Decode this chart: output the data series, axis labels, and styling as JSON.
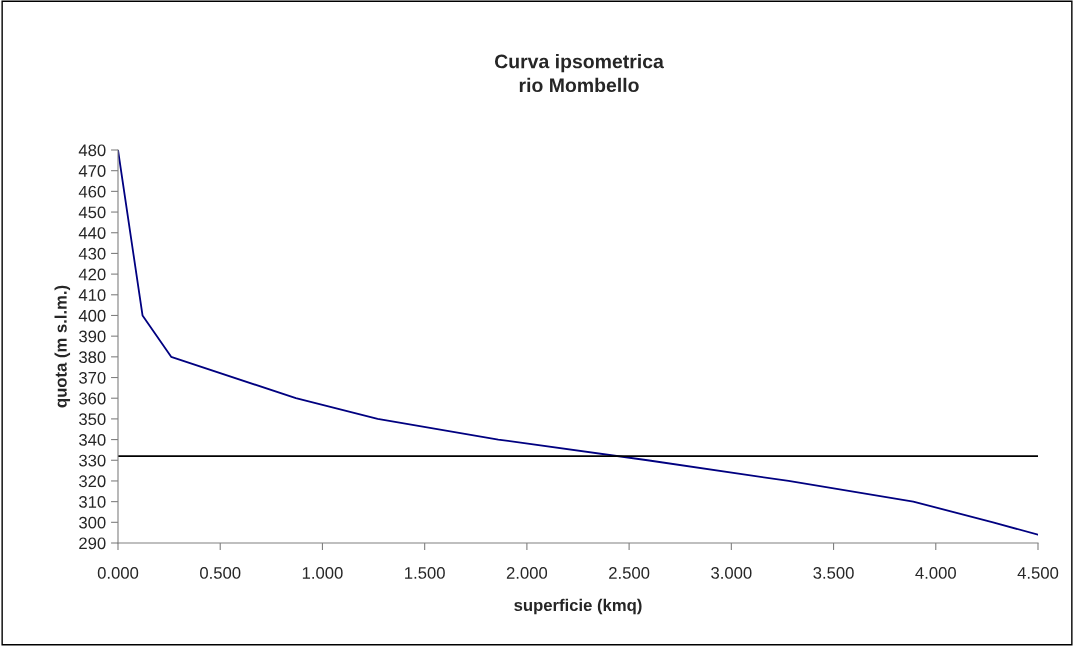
{
  "chart_data": {
    "type": "line",
    "title": "Curva ipsometrica\nrio Mombello",
    "xlabel": "superficie (kmq)",
    "ylabel": "quota (m s.l.m.)",
    "series": [
      {
        "color": "#000080",
        "x": [
          0,
          0.12,
          0.26,
          0.87,
          1.27,
          1.86,
          2.59,
          3.28,
          3.89,
          4.28,
          4.5
        ],
        "values": [
          480,
          400,
          380,
          360,
          350,
          340,
          330,
          320,
          310,
          300,
          294
        ]
      }
    ],
    "xlim": [
      0,
      4.5
    ],
    "xticks": [
      {
        "value": 0,
        "label": "0.000"
      },
      {
        "value": 0.5,
        "label": "0.500"
      },
      {
        "value": 1,
        "label": "1.000"
      },
      {
        "value": 1.5,
        "label": "1.500"
      },
      {
        "value": 2,
        "label": "2.000"
      },
      {
        "value": 2.5,
        "label": "2.500"
      },
      {
        "value": 3,
        "label": "3.000"
      },
      {
        "value": 3.5,
        "label": "3.500"
      },
      {
        "value": 4,
        "label": "4.000"
      },
      {
        "value": 4.5,
        "label": "4.500"
      }
    ],
    "ylim": [
      290,
      480
    ],
    "yticks": [
      290,
      300,
      310,
      320,
      330,
      340,
      350,
      360,
      370,
      380,
      390,
      400,
      410,
      420,
      430,
      440,
      450,
      460,
      470,
      480
    ],
    "ref_lines": [
      {
        "axis": "y",
        "value": 332,
        "color": "#000000"
      }
    ],
    "grid": false,
    "legend": false,
    "marker": "none",
    "line_style": "solid"
  }
}
